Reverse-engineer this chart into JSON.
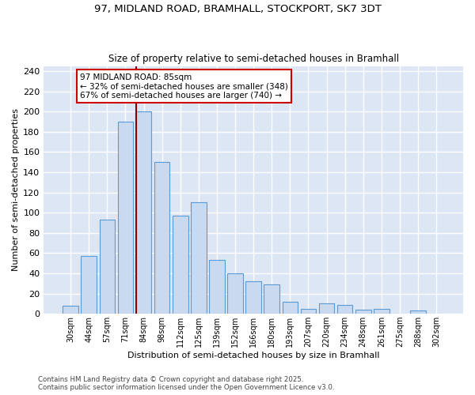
{
  "title1": "97, MIDLAND ROAD, BRAMHALL, STOCKPORT, SK7 3DT",
  "title2": "Size of property relative to semi-detached houses in Bramhall",
  "xlabel": "Distribution of semi-detached houses by size in Bramhall",
  "ylabel": "Number of semi-detached properties",
  "categories": [
    "30sqm",
    "44sqm",
    "57sqm",
    "71sqm",
    "84sqm",
    "98sqm",
    "112sqm",
    "125sqm",
    "139sqm",
    "152sqm",
    "166sqm",
    "180sqm",
    "193sqm",
    "207sqm",
    "220sqm",
    "234sqm",
    "248sqm",
    "261sqm",
    "275sqm",
    "288sqm",
    "302sqm"
  ],
  "values": [
    8,
    57,
    93,
    190,
    200,
    150,
    97,
    110,
    53,
    40,
    32,
    29,
    12,
    5,
    10,
    9,
    4,
    5,
    0,
    3,
    0
  ],
  "highlight_index": 4,
  "bar_color": "#c9d9f0",
  "bar_edge_color": "#5b9bd5",
  "highlight_line_color": "#8b0000",
  "background_color": "#dce6f5",
  "grid_color": "#ffffff",
  "annotation_text": "97 MIDLAND ROAD: 85sqm\n← 32% of semi-detached houses are smaller (348)\n67% of semi-detached houses are larger (740) →",
  "annotation_box_color": "#ffffff",
  "annotation_box_edge": "#cc0000",
  "footer1": "Contains HM Land Registry data © Crown copyright and database right 2025.",
  "footer2": "Contains public sector information licensed under the Open Government Licence v3.0.",
  "ylim": [
    0,
    245
  ],
  "yticks": [
    0,
    20,
    40,
    60,
    80,
    100,
    120,
    140,
    160,
    180,
    200,
    220,
    240
  ]
}
